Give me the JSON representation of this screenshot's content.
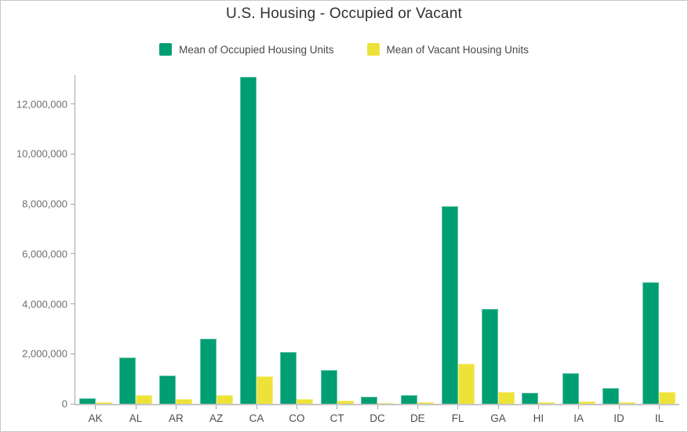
{
  "title": "U.S. Housing - Occupied or Vacant",
  "legend": {
    "items": [
      {
        "label": "Mean of Occupied Housing Units",
        "color": "#009E73"
      },
      {
        "label": "Mean of Vacant Housing Units",
        "color": "#EDE338"
      }
    ]
  },
  "colors": {
    "occupied": "#009E73",
    "vacant": "#EDE338",
    "axis": "#a6a6a6",
    "baseline": "#c6c6c6",
    "tick_label": "#6e6e6e",
    "category_label": "#4b4e54",
    "title_text": "#2f3133",
    "frame_border": "#c9c9c9"
  },
  "chart_data": {
    "type": "bar",
    "title": "U.S. Housing - Occupied or Vacant",
    "xlabel": "",
    "ylabel": "",
    "grid": false,
    "legend_position": "top",
    "ylim": [
      0,
      13150000
    ],
    "yticks": [
      0,
      2000000,
      4000000,
      6000000,
      8000000,
      10000000,
      12000000
    ],
    "categories": [
      "AK",
      "AL",
      "AR",
      "AZ",
      "CA",
      "CO",
      "CT",
      "DC",
      "DE",
      "FL",
      "GA",
      "HI",
      "IA",
      "ID",
      "IL"
    ],
    "series": [
      {
        "name": "Mean of Occupied Housing Units",
        "color": "#009E73",
        "values": [
          230000,
          1860000,
          1140000,
          2610000,
          13100000,
          2080000,
          1360000,
          290000,
          340000,
          7900000,
          3800000,
          440000,
          1240000,
          620000,
          4850000
        ]
      },
      {
        "name": "Mean of Vacant Housing Units",
        "color": "#EDE338",
        "values": [
          60000,
          350000,
          190000,
          360000,
          1100000,
          200000,
          120000,
          30000,
          60000,
          1600000,
          470000,
          70000,
          110000,
          60000,
          470000
        ]
      }
    ]
  }
}
